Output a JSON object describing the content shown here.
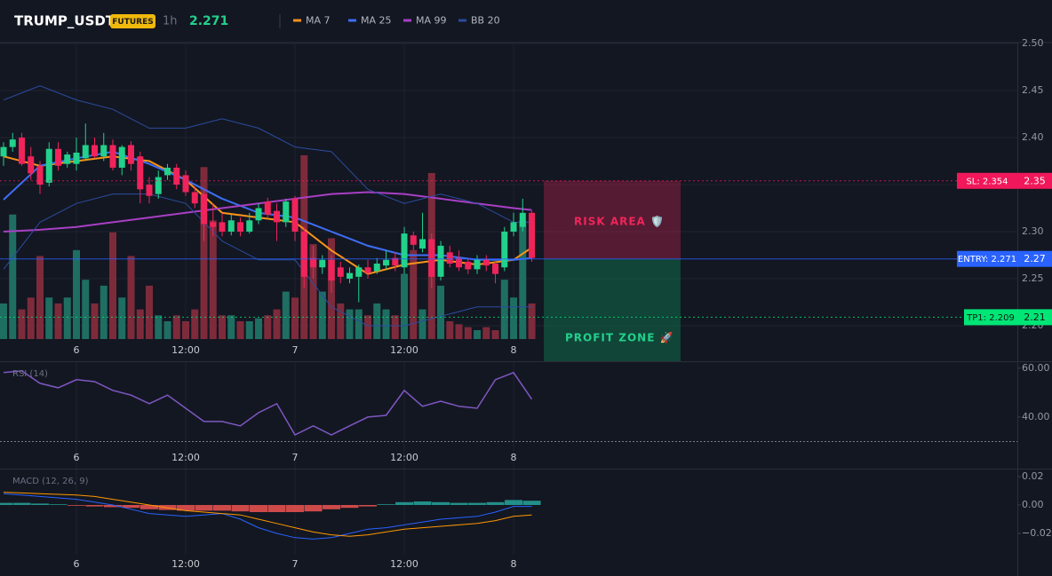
{
  "header": {
    "symbol": "TRUMP_USDT",
    "badge": "FUTURES",
    "interval": "1h",
    "price": "2.271"
  },
  "chart_data": [
    {
      "type": "candlestick",
      "x": [
        -8,
        -7,
        -6,
        -5,
        -4,
        -3,
        -2,
        -1,
        0,
        1,
        2,
        3,
        4,
        5,
        6,
        7,
        8,
        9,
        10,
        11,
        12,
        13,
        14,
        15,
        16,
        17,
        18,
        19,
        20,
        21,
        22,
        23,
        24,
        25,
        26,
        27,
        28,
        29,
        30,
        31,
        32,
        33,
        34,
        35,
        36,
        37,
        38,
        39,
        40,
        41,
        42,
        43,
        44,
        45,
        46,
        47,
        48,
        49,
        50
      ],
      "open": [
        2.38,
        2.39,
        2.4,
        2.38,
        2.37,
        2.352,
        2.388,
        2.372,
        2.372,
        2.378,
        2.392,
        2.38,
        2.392,
        2.368,
        2.392,
        2.38,
        2.35,
        2.34,
        2.36,
        2.368,
        2.36,
        2.342,
        2.34,
        2.31,
        2.31,
        2.3,
        2.31,
        2.3,
        2.312,
        2.332,
        2.322,
        2.31,
        2.335,
        2.3,
        2.272,
        2.262,
        2.27,
        2.262,
        2.25,
        2.252,
        2.262,
        2.258,
        2.264,
        2.272,
        2.262,
        2.296,
        2.282,
        2.292,
        2.252,
        2.278,
        2.272,
        2.268,
        2.26,
        2.27,
        2.266,
        2.262,
        2.3,
        2.305,
        2.32
      ],
      "high": [
        2.395,
        2.405,
        2.405,
        2.39,
        2.375,
        2.395,
        2.395,
        2.385,
        2.4,
        2.415,
        2.4,
        2.405,
        2.398,
        2.392,
        2.396,
        2.385,
        2.358,
        2.365,
        2.372,
        2.372,
        2.365,
        2.348,
        2.345,
        2.33,
        2.32,
        2.318,
        2.315,
        2.32,
        2.33,
        2.336,
        2.33,
        2.335,
        2.338,
        2.305,
        2.285,
        2.275,
        2.275,
        2.268,
        2.262,
        2.265,
        2.27,
        2.272,
        2.28,
        2.278,
        2.305,
        2.3,
        2.32,
        2.298,
        2.29,
        2.285,
        2.28,
        2.272,
        2.275,
        2.275,
        2.27,
        2.305,
        2.32,
        2.335,
        2.322
      ],
      "low": [
        2.37,
        2.385,
        2.37,
        2.355,
        2.34,
        2.348,
        2.365,
        2.368,
        2.365,
        2.375,
        2.378,
        2.375,
        2.365,
        2.36,
        2.365,
        2.33,
        2.33,
        2.335,
        2.355,
        2.345,
        2.338,
        2.325,
        2.29,
        2.295,
        2.295,
        2.296,
        2.295,
        2.298,
        2.308,
        2.315,
        2.29,
        2.305,
        2.29,
        2.24,
        2.25,
        2.255,
        2.235,
        2.245,
        2.245,
        2.225,
        2.25,
        2.255,
        2.26,
        2.258,
        2.255,
        2.28,
        2.278,
        2.24,
        2.248,
        2.262,
        2.258,
        2.255,
        2.255,
        2.258,
        2.245,
        2.258,
        2.295,
        2.3,
        2.268
      ],
      "close": [
        2.39,
        2.398,
        2.372,
        2.362,
        2.35,
        2.388,
        2.37,
        2.382,
        2.384,
        2.392,
        2.38,
        2.392,
        2.368,
        2.39,
        2.372,
        2.345,
        2.338,
        2.358,
        2.368,
        2.35,
        2.342,
        2.33,
        2.308,
        2.305,
        2.3,
        2.312,
        2.3,
        2.312,
        2.325,
        2.318,
        2.31,
        2.332,
        2.3,
        2.252,
        2.262,
        2.27,
        2.248,
        2.252,
        2.256,
        2.262,
        2.256,
        2.266,
        2.27,
        2.264,
        2.298,
        2.286,
        2.292,
        2.252,
        2.285,
        2.266,
        2.262,
        2.26,
        2.27,
        2.264,
        2.255,
        2.3,
        2.31,
        2.32,
        2.272
      ],
      "volume": [
        12,
        42,
        10,
        14,
        28,
        14,
        12,
        14,
        30,
        20,
        12,
        18,
        36,
        14,
        28,
        10,
        18,
        8,
        6,
        8,
        6,
        10,
        58,
        40,
        8,
        8,
        6,
        6,
        7,
        8,
        10,
        16,
        14,
        62,
        32,
        16,
        34,
        12,
        10,
        10,
        8,
        12,
        10,
        8,
        22,
        30,
        10,
        56,
        18,
        6,
        5,
        4,
        3,
        4,
        3,
        20,
        14,
        40,
        12
      ],
      "up_color": "#22d18b",
      "down_color": "#f0245b",
      "xlim": [
        -8.39,
        103.31
      ],
      "xticks": [
        {
          "value": 0,
          "label": "6"
        },
        {
          "value": 12,
          "label": "12:00"
        },
        {
          "value": 24,
          "label": "7"
        },
        {
          "value": 36,
          "label": "12:00"
        },
        {
          "value": 48,
          "label": "8"
        }
      ],
      "ylim": [
        2.1858,
        2.501
      ],
      "yticks": [
        {
          "value": 2.2,
          "label": "2.20"
        },
        2.25,
        {
          "value": 2.3,
          "label": "2.30"
        },
        2.35,
        {
          "value": 2.4,
          "label": "2.40"
        },
        2.45,
        {
          "value": 2.5,
          "label": "2.50"
        }
      ],
      "volume_ylim": [
        0,
        100
      ],
      "grid": true,
      "series": [
        {
          "name": "MA 7",
          "color": "#f7931a",
          "x": [
            -8,
            -4,
            0,
            4,
            8,
            12,
            16,
            20,
            24,
            28,
            32,
            36,
            40,
            44,
            48,
            50
          ],
          "values": [
            2.38,
            2.37,
            2.375,
            2.38,
            2.375,
            2.355,
            2.32,
            2.315,
            2.31,
            2.28,
            2.255,
            2.265,
            2.27,
            2.265,
            2.27,
            2.283
          ]
        },
        {
          "name": "MA 25",
          "color": "#3d6ef5",
          "x": [
            -8,
            -4,
            0,
            4,
            8,
            12,
            16,
            20,
            24,
            28,
            32,
            36,
            40,
            44,
            48,
            50
          ],
          "values": [
            2.334,
            2.37,
            2.378,
            2.385,
            2.372,
            2.355,
            2.335,
            2.32,
            2.315,
            2.3,
            2.285,
            2.275,
            2.275,
            2.27,
            2.27,
            2.272
          ]
        },
        {
          "name": "MA 99",
          "color": "#a83fc4",
          "x": [
            -8,
            -4,
            0,
            4,
            8,
            12,
            16,
            20,
            24,
            28,
            32,
            36,
            40,
            44,
            48,
            50
          ],
          "values": [
            2.3,
            2.302,
            2.305,
            2.31,
            2.315,
            2.32,
            2.325,
            2.33,
            2.335,
            2.34,
            2.342,
            2.34,
            2.335,
            2.33,
            2.325,
            2.323
          ]
        },
        {
          "name": "BB 20",
          "color": "#2b4c9e",
          "x": [
            -8,
            -4,
            0,
            4,
            8,
            12,
            16,
            20,
            24,
            28,
            32,
            36,
            40,
            44,
            48,
            50
          ],
          "values": [
            2.44,
            2.455,
            2.44,
            2.43,
            2.41,
            2.41,
            2.42,
            2.41,
            2.39,
            2.385,
            2.345,
            2.33,
            2.34,
            2.33,
            2.31,
            2.31
          ],
          "lower": [
            2.26,
            2.31,
            2.33,
            2.34,
            2.34,
            2.33,
            2.29,
            2.27,
            2.27,
            2.22,
            2.2,
            2.2,
            2.21,
            2.22,
            2.22,
            2.22
          ]
        }
      ],
      "levels": [
        {
          "label": "SL: 2.354",
          "value": 2.354,
          "axis_label": "2.35",
          "color": "#f0185a"
        },
        {
          "label": "ENTRY: 2.271",
          "value": 2.271,
          "axis_label": "2.27",
          "color": "#2962ff"
        },
        {
          "label": "TP1: 2.209",
          "value": 2.209,
          "axis_label": "2.21",
          "color": "#00e676"
        }
      ],
      "annotations": [
        "RISK AREA 🛡️",
        "PROFIT ZONE 🚀"
      ]
    },
    {
      "type": "line",
      "title": "RSI (14)",
      "color": "#7e57c2",
      "x": [
        -8,
        -6,
        -4,
        -2,
        0,
        2,
        4,
        6,
        8,
        10,
        12,
        14,
        16,
        18,
        20,
        22,
        24,
        26,
        28,
        30,
        32,
        34,
        36,
        38,
        40,
        42,
        44,
        46,
        48,
        50
      ],
      "values": [
        58.2,
        58.9,
        53.8,
        52,
        55.3,
        54.5,
        50.9,
        49,
        45.5,
        49,
        43.6,
        38.2,
        38.2,
        36.4,
        41.8,
        45.5,
        32.7,
        36.4,
        32.7,
        36.4,
        40,
        40.7,
        50.9,
        44.4,
        46.5,
        44.4,
        43.6,
        55.3,
        58.2,
        47.3
      ],
      "hline": 30,
      "xlim": [
        -8.39,
        103.31
      ],
      "xticks": [
        {
          "value": 0,
          "label": "6"
        },
        {
          "value": 12,
          "label": "12:00"
        },
        {
          "value": 24,
          "label": "7"
        },
        {
          "value": 36,
          "label": "12:00"
        },
        {
          "value": 48,
          "label": "8"
        }
      ],
      "ylim": [
        18.9,
        62.5
      ],
      "yticks": [
        {
          "value": 60,
          "label": "60.00"
        },
        {
          "value": 40,
          "label": "40.00"
        }
      ]
    },
    {
      "type": "macd",
      "title": "MACD (12, 26, 9)",
      "x": [
        -8,
        -6,
        -4,
        -2,
        0,
        2,
        4,
        6,
        8,
        10,
        12,
        14,
        16,
        18,
        20,
        22,
        24,
        26,
        28,
        30,
        32,
        34,
        36,
        38,
        40,
        42,
        44,
        46,
        48,
        50
      ],
      "histogram": [
        0.0015,
        0.0015,
        0.001,
        0.0005,
        -0.0005,
        -0.001,
        -0.0015,
        -0.002,
        -0.003,
        -0.0035,
        -0.004,
        -0.004,
        -0.004,
        -0.0045,
        -0.005,
        -0.005,
        -0.005,
        -0.0045,
        -0.003,
        -0.002,
        -0.001,
        0.0005,
        0.002,
        0.0025,
        0.002,
        0.0015,
        0.0015,
        0.002,
        0.0035,
        0.003
      ],
      "macd": [
        0.008,
        0.007,
        0.006,
        0.005,
        0.004,
        0.002,
        0.0,
        -0.003,
        -0.006,
        -0.007,
        -0.008,
        -0.007,
        -0.006,
        -0.01,
        -0.016,
        -0.02,
        -0.023,
        -0.024,
        -0.023,
        -0.02,
        -0.017,
        -0.016,
        -0.014,
        -0.012,
        -0.01,
        -0.009,
        -0.008,
        -0.005,
        -0.001,
        -0.001
      ],
      "signal": [
        0.009,
        0.0085,
        0.008,
        0.0075,
        0.007,
        0.006,
        0.004,
        0.002,
        0.0,
        -0.002,
        -0.004,
        -0.005,
        -0.006,
        -0.007,
        -0.01,
        -0.013,
        -0.016,
        -0.019,
        -0.021,
        -0.022,
        -0.021,
        -0.019,
        -0.017,
        -0.016,
        -0.015,
        -0.014,
        -0.013,
        -0.011,
        -0.008,
        -0.007
      ],
      "positive_color": "#26a69a",
      "negative_color": "#ef5350",
      "macd_color": "#2962ff",
      "signal_color": "#ff9800",
      "xlim": [
        -8.39,
        103.31
      ],
      "xticks": [
        {
          "value": 0,
          "label": "6"
        },
        {
          "value": 12,
          "label": "12:00"
        },
        {
          "value": 24,
          "label": "7"
        },
        {
          "value": 36,
          "label": "12:00"
        },
        {
          "value": 48,
          "label": "8"
        }
      ],
      "ylim": [
        -0.035,
        0.025
      ],
      "yticks": [
        0.02,
        {
          "value": 0,
          "label": "0.00"
        },
        {
          "value": -0.02,
          "label": "−0.02"
        }
      ]
    }
  ]
}
